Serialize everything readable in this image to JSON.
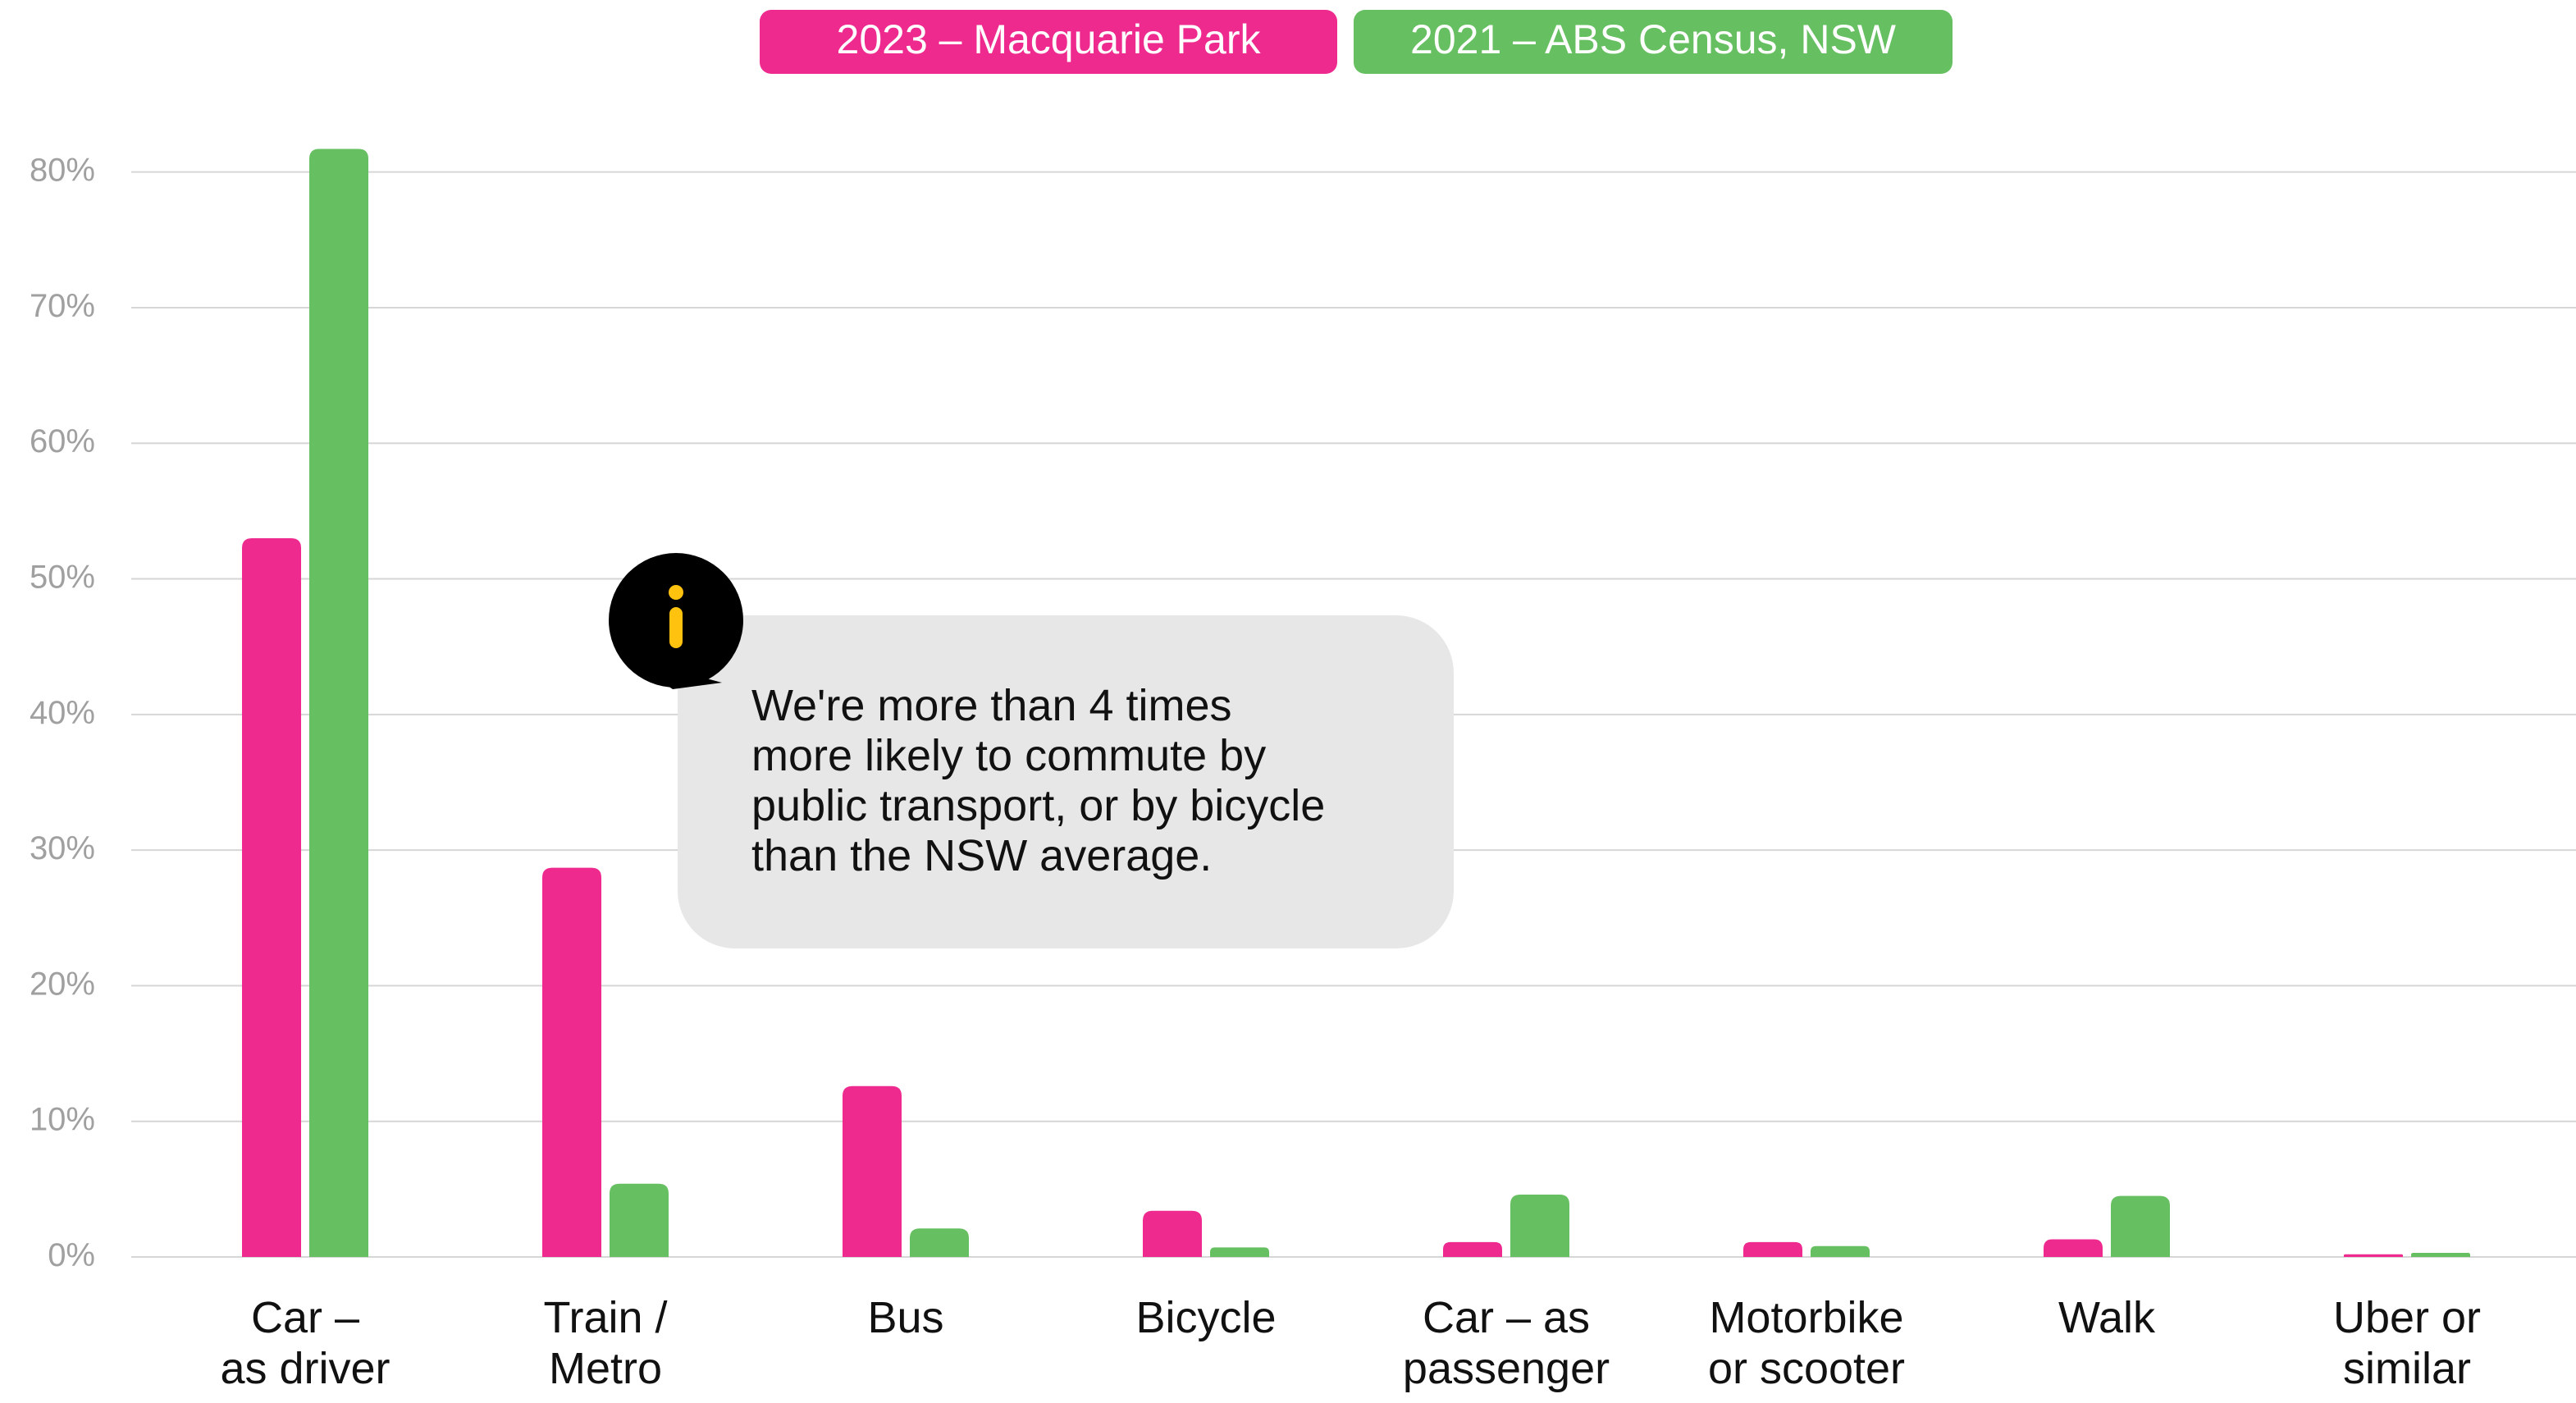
{
  "chart_data": {
    "type": "bar",
    "categories": [
      "Car –\nas driver",
      "Train /\nMetro",
      "Bus",
      "Bicycle",
      "Car – as\npassenger",
      "Motorbike\nor scooter",
      "Walk",
      "Uber or\nsimilar"
    ],
    "series": [
      {
        "name": "2023 – Macquarie Park",
        "color": "#ee2a8f",
        "values": [
          53.0,
          28.7,
          12.6,
          3.4,
          1.1,
          1.1,
          1.3,
          0.2
        ]
      },
      {
        "name": "2021 – ABS Census, NSW",
        "color": "#66bf60",
        "values": [
          81.7,
          5.4,
          2.1,
          0.7,
          4.6,
          0.8,
          4.5,
          0.3
        ]
      }
    ],
    "ylim": [
      0,
      85
    ],
    "yticks": [
      {
        "value": 0,
        "label": "0%"
      },
      {
        "value": 10,
        "label": "10%"
      },
      {
        "value": 20,
        "label": "20%"
      },
      {
        "value": 30,
        "label": "30%"
      },
      {
        "value": 40,
        "label": "40%"
      },
      {
        "value": 50,
        "label": "50%"
      },
      {
        "value": 60,
        "label": "60%"
      },
      {
        "value": 70,
        "label": "70%"
      },
      {
        "value": 80,
        "label": "80%"
      }
    ],
    "grid": true,
    "annotation": "We're more than 4 times\nmore likely to commute by\npublic transport, or by bicycle\nthan the NSW average."
  }
}
